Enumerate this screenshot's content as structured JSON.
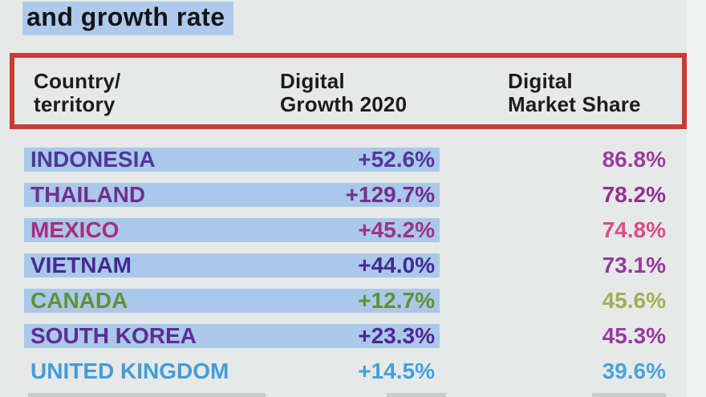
{
  "title": "and growth rate",
  "table": {
    "headers": [
      {
        "line1": "Country/",
        "line2": "territory"
      },
      {
        "line1": "Digital",
        "line2": "Growth 2020"
      },
      {
        "line1": "Digital",
        "line2": "Market Share"
      }
    ],
    "rows": [
      {
        "country": "INDONESIA",
        "growth": "+52.6%",
        "share": "86.8%",
        "highlighted": true,
        "colors": {
          "country": "#50379a",
          "growth": "#55379a",
          "share": "#9a3f9e"
        }
      },
      {
        "country": "THAILAND",
        "growth": "+129.7%",
        "share": "78.2%",
        "highlighted": true,
        "colors": {
          "country": "#702f8e",
          "growth": "#702f8e",
          "share": "#8f3192"
        }
      },
      {
        "country": "MEXICO",
        "growth": "+45.2%",
        "share": "74.8%",
        "highlighted": true,
        "colors": {
          "country": "#a92e7e",
          "growth": "#9c3388",
          "share": "#de4b86"
        }
      },
      {
        "country": "VIETNAM",
        "growth": "+44.0%",
        "share": "73.1%",
        "highlighted": true,
        "colors": {
          "country": "#452a92",
          "growth": "#452a92",
          "share": "#96399c"
        }
      },
      {
        "country": "CANADA",
        "growth": "+12.7%",
        "share": "45.6%",
        "highlighted": true,
        "colors": {
          "country": "#5f9137",
          "growth": "#5f9137",
          "share": "#a3ad52"
        }
      },
      {
        "country": "SOUTH KOREA",
        "growth": "+23.3%",
        "share": "45.3%",
        "highlighted": true,
        "colors": {
          "country": "#5e2c95",
          "growth": "#4f2791",
          "share": "#9a3aa2"
        }
      },
      {
        "country": "UNITED KINGDOM",
        "growth": "+14.5%",
        "share": "39.6%",
        "highlighted": false,
        "colors": {
          "country": "#459cd9",
          "growth": "#429fd9",
          "share": "#4ba2da"
        }
      }
    ]
  },
  "chart_data": {
    "type": "table",
    "title": "and growth rate",
    "columns": [
      "Country/territory",
      "Digital Growth 2020",
      "Digital Market Share"
    ],
    "rows": [
      [
        "INDONESIA",
        "+52.6%",
        "86.8%"
      ],
      [
        "THAILAND",
        "+129.7%",
        "78.2%"
      ],
      [
        "MEXICO",
        "+45.2%",
        "74.8%"
      ],
      [
        "VIETNAM",
        "+44.0%",
        "73.1%"
      ],
      [
        "CANADA",
        "+12.7%",
        "45.6%"
      ],
      [
        "SOUTH KOREA",
        "+23.3%",
        "45.3%"
      ],
      [
        "UNITED KINGDOM",
        "+14.5%",
        "39.6%"
      ]
    ],
    "growth_values_pct": [
      52.6,
      129.7,
      45.2,
      44.0,
      12.7,
      23.3,
      14.5
    ],
    "market_share_values_pct": [
      86.8,
      78.2,
      74.8,
      73.1,
      45.6,
      45.3,
      39.6
    ],
    "notes": "Header row outlined in red; all rows except UNITED KINGDOM have a light-blue highlight bar spanning country name and growth value; a next row is clipped at the bottom edge"
  },
  "colors": {
    "background": "#e6e9e8",
    "row_highlight": "#a9c8ea",
    "title_highlight": "#adc9ec",
    "header_border": "#cc3a33",
    "header_text": "#1d1d1d",
    "title_text": "#141414"
  }
}
